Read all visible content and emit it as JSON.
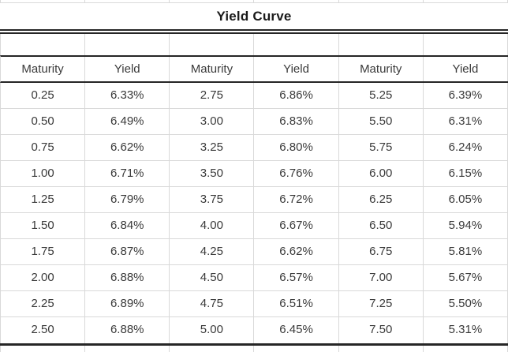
{
  "sheet": {
    "title": "Yield Curve",
    "column_headers": [
      "Maturity",
      "Yield",
      "Maturity",
      "Yield",
      "Maturity",
      "Yield"
    ],
    "rows": [
      [
        "0.25",
        "6.33%",
        "2.75",
        "6.86%",
        "5.25",
        "6.39%"
      ],
      [
        "0.50",
        "6.49%",
        "3.00",
        "6.83%",
        "5.50",
        "6.31%"
      ],
      [
        "0.75",
        "6.62%",
        "3.25",
        "6.80%",
        "5.75",
        "6.24%"
      ],
      [
        "1.00",
        "6.71%",
        "3.50",
        "6.76%",
        "6.00",
        "6.15%"
      ],
      [
        "1.25",
        "6.79%",
        "3.75",
        "6.72%",
        "6.25",
        "6.05%"
      ],
      [
        "1.50",
        "6.84%",
        "4.00",
        "6.67%",
        "6.50",
        "5.94%"
      ],
      [
        "1.75",
        "6.87%",
        "4.25",
        "6.62%",
        "6.75",
        "5.81%"
      ],
      [
        "2.00",
        "6.88%",
        "4.50",
        "6.57%",
        "7.00",
        "5.67%"
      ],
      [
        "2.25",
        "6.89%",
        "4.75",
        "6.51%",
        "7.25",
        "5.50%"
      ],
      [
        "2.50",
        "6.88%",
        "5.00",
        "6.45%",
        "7.50",
        "5.31%"
      ]
    ],
    "colors": {
      "grid_line": "#d9d9d9",
      "border_dark": "#262626",
      "text": "#3a3a3a",
      "title_text": "#1a1a1a",
      "background": "#ffffff"
    }
  }
}
